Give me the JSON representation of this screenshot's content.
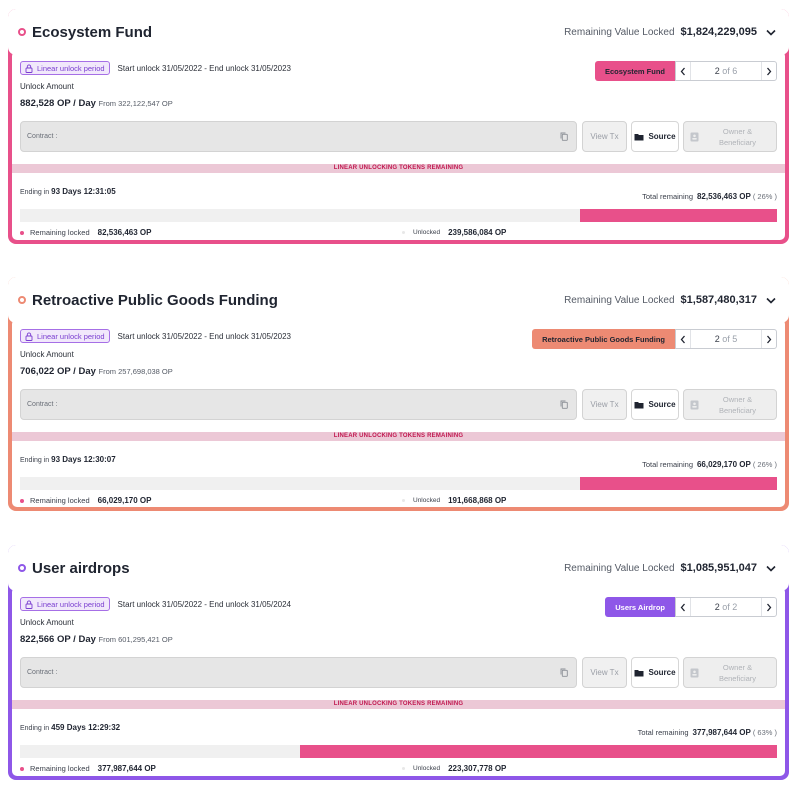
{
  "common": {
    "remaining_value_locked_label": "Remaining Value Locked",
    "unlock_amount_label": "Unlock Amount",
    "rate_suffix": " / Day",
    "from_label": "From",
    "contract_label": "Contract :",
    "view_tx_label": "View Tx",
    "source_label": "Source",
    "owner_label_1": "Owner &",
    "owner_label_2": "Beneficiary",
    "banner_text": "LINEAR UNLOCKING TOKENS REMAINING",
    "ending_in_label": "Ending in",
    "total_remaining_label": "Total remaining",
    "remaining_locked_label": "Remaining locked",
    "unlocked_label": "Unlocked",
    "period_badge_label": "Linear unlock period",
    "pager_of": "of",
    "colors": {
      "pink": "#e8508a",
      "coral": "#ed8a73",
      "purple": "#8e57e8",
      "banner_bg": "#ecc8d6",
      "banner_text": "#c0174f"
    },
    "icons": [
      "chevron-down-icon",
      "lock-icon",
      "chevron-left-icon",
      "chevron-right-icon",
      "copy-icon",
      "folder-icon",
      "owner-icon"
    ]
  },
  "cards": [
    {
      "title": "Ecosystem Fund",
      "remaining_value_locked": "$1,824,229,095",
      "period_text": "Start unlock 31/05/2022 - End unlock 31/05/2023",
      "rate": "882,528 OP",
      "from_amount": "322,122,547 OP",
      "tag": "Ecosystem Fund",
      "pager_current": "2",
      "pager_total": "6",
      "ending_in": "93 Days 12:31:05",
      "total_remaining": "82,536,463 OP",
      "total_remaining_pct": "( 26% )",
      "remaining_fraction": 0.26,
      "remaining_locked": "82,536,463 OP",
      "unlocked": "239,586,084 OP"
    },
    {
      "title": "Retroactive Public Goods Funding",
      "remaining_value_locked": "$1,587,480,317",
      "period_text": "Start unlock 31/05/2022 - End unlock 31/05/2023",
      "rate": "706,022 OP",
      "from_amount": "257,698,038 OP",
      "tag": "Retroactive Public Goods Funding",
      "pager_current": "2",
      "pager_total": "5",
      "ending_in": "93 Days 12:30:07",
      "total_remaining": "66,029,170 OP",
      "total_remaining_pct": "( 26% )",
      "remaining_fraction": 0.26,
      "remaining_locked": "66,029,170 OP",
      "unlocked": "191,668,868 OP"
    },
    {
      "title": "User airdrops",
      "remaining_value_locked": "$1,085,951,047",
      "period_text": "Start unlock 31/05/2022 - End unlock 31/05/2024",
      "rate": "822,566 OP",
      "from_amount": "601,295,421 OP",
      "tag": "Users Airdrop",
      "pager_current": "2",
      "pager_total": "2",
      "ending_in": "459 Days 12:29:32",
      "total_remaining": "377,987,644 OP",
      "total_remaining_pct": "( 63% )",
      "remaining_fraction": 0.63,
      "remaining_locked": "377,987,644 OP",
      "unlocked": "223,307,778 OP"
    }
  ]
}
